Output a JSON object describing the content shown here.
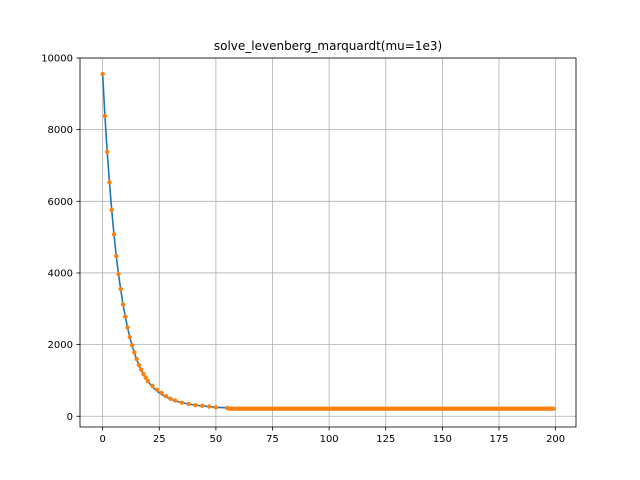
{
  "chart_data": {
    "type": "scatter",
    "title": "solve_levenberg_marquardt(mu=1e3)",
    "xlabel": "",
    "ylabel": "",
    "xlim": [
      -10,
      209
    ],
    "ylim": [
      -300,
      10000
    ],
    "xticks": [
      0,
      25,
      50,
      75,
      100,
      125,
      150,
      175,
      200
    ],
    "yticks": [
      0,
      2000,
      4000,
      6000,
      8000,
      10000
    ],
    "grid": true,
    "colors": {
      "points": "#ff7f0e",
      "fit": "#1f77b4"
    },
    "series": [
      {
        "kind": "points",
        "x": [
          0,
          1,
          2,
          3,
          4,
          5,
          6,
          7,
          8,
          9,
          10,
          11,
          12,
          13,
          14,
          15,
          16,
          17,
          18,
          19,
          20,
          22,
          24,
          26,
          28,
          30,
          32,
          35,
          38,
          41,
          44,
          47,
          50,
          55
        ],
        "values": [
          9550,
          8380,
          7380,
          6530,
          5760,
          5080,
          4470,
          3970,
          3550,
          3120,
          2780,
          2480,
          2210,
          1980,
          1780,
          1600,
          1430,
          1300,
          1180,
          1080,
          980,
          850,
          740,
          650,
          560,
          490,
          440,
          380,
          340,
          310,
          290,
          270,
          250,
          230
        ]
      },
      {
        "kind": "fit",
        "x": [
          0,
          1,
          2,
          3,
          4,
          5,
          6,
          7,
          8,
          9,
          10,
          11,
          12,
          13,
          14,
          15,
          16,
          17,
          18,
          19,
          20,
          22,
          24,
          26,
          28,
          30,
          32,
          35,
          38,
          41,
          44,
          47,
          50,
          55,
          60,
          70,
          80,
          100,
          125,
          150,
          175,
          199
        ],
        "values": [
          9550,
          8390,
          7390,
          6530,
          5760,
          5080,
          4480,
          3970,
          3530,
          3120,
          2780,
          2470,
          2200,
          1970,
          1770,
          1590,
          1430,
          1290,
          1170,
          1060,
          970,
          820,
          700,
          610,
          540,
          480,
          430,
          380,
          340,
          310,
          290,
          270,
          250,
          235,
          225,
          215,
          210,
          208,
          207,
          206,
          206,
          206
        ]
      },
      {
        "kind": "points",
        "x_start": 56,
        "x_end": 199,
        "value": 210
      }
    ]
  }
}
